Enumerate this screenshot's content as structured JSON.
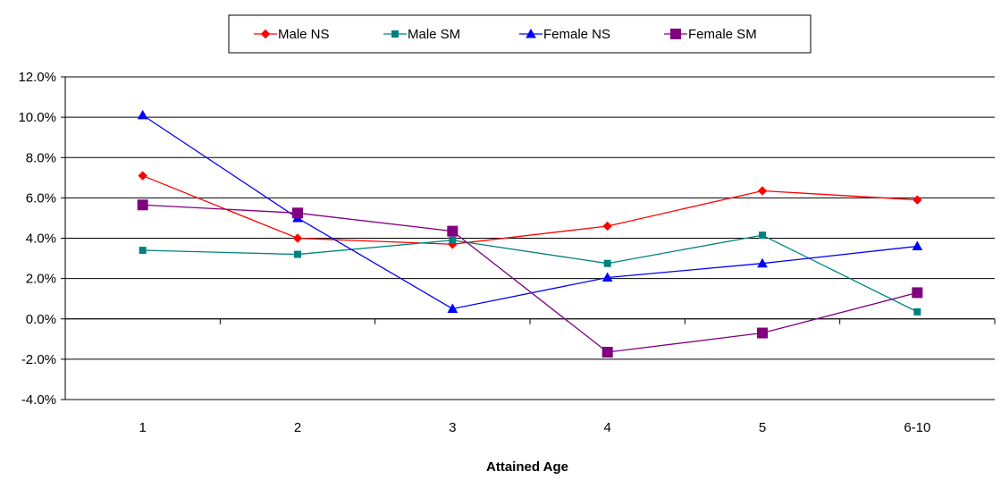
{
  "chart_data": {
    "type": "line",
    "title": "",
    "xlabel": "Attained Age",
    "ylabel": "",
    "categories": [
      "1",
      "2",
      "3",
      "4",
      "5",
      "6-10"
    ],
    "ylim": [
      -4.0,
      12.0
    ],
    "ytick_step": 2.0,
    "ytick_format": "percent_1dp",
    "grid": "horizontal",
    "legend": "top-center",
    "series": [
      {
        "name": "Male NS",
        "color": "#ff0000",
        "marker": "diamond",
        "values": [
          7.1,
          4.0,
          3.7,
          4.6,
          6.35,
          5.9
        ]
      },
      {
        "name": "Male SM",
        "color": "#008080",
        "marker": "square-small",
        "values": [
          3.4,
          3.2,
          3.9,
          2.75,
          4.15,
          0.35
        ]
      },
      {
        "name": "Female NS",
        "color": "#0000ff",
        "marker": "triangle",
        "values": [
          10.1,
          5.0,
          0.5,
          2.05,
          2.75,
          3.6
        ]
      },
      {
        "name": "Female SM",
        "color": "#800080",
        "marker": "square",
        "values": [
          5.65,
          5.25,
          4.35,
          -1.65,
          -0.7,
          1.3
        ]
      }
    ]
  }
}
